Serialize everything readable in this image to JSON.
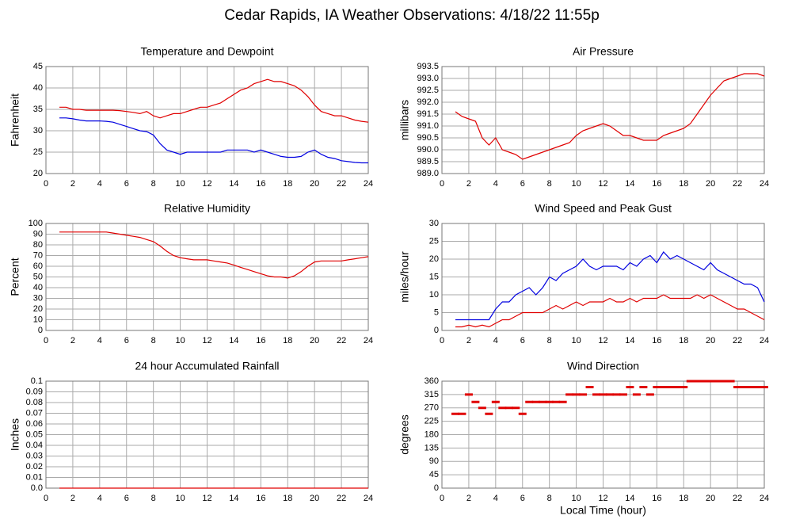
{
  "title": "Cedar Rapids, IA Weather Observations: 4/18/22 11:55p",
  "chart_data": [
    {
      "type": "line",
      "title": "Temperature and Dewpoint",
      "ylabel": "Fahrenheit",
      "x": [
        1,
        1.5,
        2,
        2.5,
        3,
        3.5,
        4,
        4.5,
        5,
        5.5,
        6,
        6.5,
        7,
        7.5,
        8,
        8.5,
        9,
        9.5,
        10,
        10.5,
        11,
        11.5,
        12,
        12.5,
        13,
        13.5,
        14,
        14.5,
        15,
        15.5,
        16,
        16.5,
        17,
        17.5,
        18,
        18.5,
        19,
        19.5,
        20,
        20.5,
        21,
        21.5,
        22,
        22.5,
        23,
        23.5,
        24
      ],
      "series": [
        {
          "color": "#e00000",
          "values": [
            35.5,
            35.5,
            35,
            35,
            34.8,
            34.8,
            34.8,
            34.8,
            34.8,
            34.7,
            34.5,
            34.3,
            34,
            34.5,
            33.5,
            33,
            33.5,
            34,
            34,
            34.5,
            35,
            35.5,
            35.5,
            36,
            36.5,
            37.5,
            38.5,
            39.5,
            40,
            41,
            41.5,
            42,
            41.5,
            41.5,
            41,
            40.5,
            39.5,
            38,
            36,
            34.5,
            34,
            33.5,
            33.5,
            33,
            32.5,
            32.2,
            32
          ]
        },
        {
          "color": "#0000e0",
          "values": [
            33,
            33,
            32.8,
            32.5,
            32.3,
            32.3,
            32.3,
            32.2,
            32,
            31.5,
            31,
            30.5,
            30,
            29.8,
            29,
            27,
            25.5,
            25,
            24.5,
            25,
            25,
            25,
            25,
            25,
            25,
            25.5,
            25.5,
            25.5,
            25.5,
            25,
            25.5,
            25,
            24.5,
            24,
            23.8,
            23.8,
            24,
            25,
            25.5,
            24.5,
            23.8,
            23.5,
            23,
            22.8,
            22.6,
            22.5,
            22.5
          ]
        }
      ],
      "xlim": [
        0,
        24
      ],
      "xticks": [
        0,
        2,
        4,
        6,
        8,
        10,
        12,
        14,
        16,
        18,
        20,
        22,
        24
      ],
      "ylim": [
        20,
        45
      ],
      "yticks": [
        20,
        25,
        30,
        35,
        40,
        45
      ],
      "grid": true
    },
    {
      "type": "line",
      "title": "Air Pressure",
      "ylabel": "millibars",
      "x": [
        1,
        1.5,
        2,
        2.5,
        3,
        3.5,
        4,
        4.5,
        5,
        5.5,
        6,
        6.5,
        7,
        7.5,
        8,
        8.5,
        9,
        9.5,
        10,
        10.5,
        11,
        11.5,
        12,
        12.5,
        13,
        13.5,
        14,
        14.5,
        15,
        15.5,
        16,
        16.5,
        17,
        17.5,
        18,
        18.5,
        19,
        19.5,
        20,
        20.5,
        21,
        21.5,
        22,
        22.5,
        23,
        23.5,
        24
      ],
      "series": [
        {
          "color": "#e00000",
          "values": [
            991.6,
            991.4,
            991.3,
            991.2,
            990.5,
            990.2,
            990.5,
            990,
            989.9,
            989.8,
            989.6,
            989.7,
            989.8,
            989.9,
            990,
            990.1,
            990.2,
            990.3,
            990.6,
            990.8,
            990.9,
            991,
            991.1,
            991,
            990.8,
            990.6,
            990.6,
            990.5,
            990.4,
            990.4,
            990.4,
            990.6,
            990.7,
            990.8,
            990.9,
            991.1,
            991.5,
            991.9,
            992.3,
            992.6,
            992.9,
            993,
            993.1,
            993.2,
            993.2,
            993.2,
            993.1
          ]
        }
      ],
      "xlim": [
        0,
        24
      ],
      "xticks": [
        0,
        2,
        4,
        6,
        8,
        10,
        12,
        14,
        16,
        18,
        20,
        22,
        24
      ],
      "ylim": [
        989,
        993.5
      ],
      "yticks": [
        {
          "value": 989,
          "label": "989.0"
        },
        989.5,
        {
          "value": 990,
          "label": "990.0"
        },
        990.5,
        {
          "value": 991,
          "label": "991.0"
        },
        991.5,
        {
          "value": 992,
          "label": "992.0"
        },
        992.5,
        {
          "value": 993,
          "label": "993.0"
        },
        993.5
      ],
      "grid": true
    },
    {
      "type": "line",
      "title": "Relative Humidity",
      "ylabel": "Percent",
      "x": [
        1,
        1.5,
        2,
        2.5,
        3,
        3.5,
        4,
        4.5,
        5,
        5.5,
        6,
        6.5,
        7,
        7.5,
        8,
        8.5,
        9,
        9.5,
        10,
        10.5,
        11,
        11.5,
        12,
        12.5,
        13,
        13.5,
        14,
        14.5,
        15,
        15.5,
        16,
        16.5,
        17,
        17.5,
        18,
        18.5,
        19,
        19.5,
        20,
        20.5,
        21,
        21.5,
        22,
        22.5,
        23,
        23.5,
        24
      ],
      "series": [
        {
          "color": "#e00000",
          "values": [
            92,
            92,
            92,
            92,
            92,
            92,
            92,
            92,
            91,
            90,
            89,
            88,
            87,
            85,
            83,
            79,
            74,
            70,
            68,
            67,
            66,
            66,
            66,
            65,
            64,
            63,
            61,
            59,
            57,
            55,
            53,
            51,
            50,
            50,
            49,
            51,
            55,
            60,
            64,
            65,
            65,
            65,
            65,
            66,
            67,
            68,
            69
          ]
        }
      ],
      "xlim": [
        0,
        24
      ],
      "xticks": [
        0,
        2,
        4,
        6,
        8,
        10,
        12,
        14,
        16,
        18,
        20,
        22,
        24
      ],
      "ylim": [
        0,
        100
      ],
      "yticks": [
        0,
        10,
        20,
        30,
        40,
        50,
        60,
        70,
        80,
        90,
        100
      ],
      "grid": true
    },
    {
      "type": "line",
      "title": "Wind Speed and Peak Gust",
      "ylabel": "miles/hour",
      "x": [
        1,
        1.5,
        2,
        2.5,
        3,
        3.5,
        4,
        4.5,
        5,
        5.5,
        6,
        6.5,
        7,
        7.5,
        8,
        8.5,
        9,
        9.5,
        10,
        10.5,
        11,
        11.5,
        12,
        12.5,
        13,
        13.5,
        14,
        14.5,
        15,
        15.5,
        16,
        16.5,
        17,
        17.5,
        18,
        18.5,
        19,
        19.5,
        20,
        20.5,
        21,
        21.5,
        22,
        22.5,
        23,
        23.5,
        24
      ],
      "series": [
        {
          "color": "#e00000",
          "values": [
            1,
            1,
            1.5,
            1,
            1.5,
            1,
            2,
            3,
            3,
            4,
            5,
            5,
            5,
            5,
            6,
            7,
            6,
            7,
            8,
            7,
            8,
            8,
            8,
            9,
            8,
            8,
            9,
            8,
            9,
            9,
            9,
            10,
            9,
            9,
            9,
            9,
            10,
            9,
            10,
            9,
            8,
            7,
            6,
            6,
            5,
            4,
            3
          ]
        },
        {
          "color": "#0000e0",
          "values": [
            3,
            3,
            3,
            3,
            3,
            3,
            6,
            8,
            8,
            10,
            11,
            12,
            10,
            12,
            15,
            14,
            16,
            17,
            18,
            20,
            18,
            17,
            18,
            18,
            18,
            17,
            19,
            18,
            20,
            21,
            19,
            22,
            20,
            21,
            20,
            19,
            18,
            17,
            19,
            17,
            16,
            15,
            14,
            13,
            13,
            12,
            8
          ]
        }
      ],
      "xlim": [
        0,
        24
      ],
      "xticks": [
        0,
        2,
        4,
        6,
        8,
        10,
        12,
        14,
        16,
        18,
        20,
        22,
        24
      ],
      "ylim": [
        0,
        30
      ],
      "yticks": [
        0,
        5,
        10,
        15,
        20,
        25,
        30
      ],
      "grid": true
    },
    {
      "type": "line",
      "title": "24 hour Accumulated Rainfall",
      "ylabel": "Inches",
      "x": [
        1,
        24
      ],
      "series": [
        {
          "color": "#e00000",
          "values": [
            0,
            0
          ]
        }
      ],
      "xlim": [
        0,
        24
      ],
      "xticks": [
        0,
        2,
        4,
        6,
        8,
        10,
        12,
        14,
        16,
        18,
        20,
        22,
        24
      ],
      "ylim": [
        0,
        0.1
      ],
      "yticks": [
        {
          "value": 0,
          "label": "0.0"
        },
        0.01,
        0.02,
        0.03,
        0.04,
        0.05,
        0.06,
        0.07,
        0.08,
        0.09,
        0.1
      ],
      "grid": true
    },
    {
      "type": "scatter",
      "title": "Wind Direction",
      "ylabel": "degrees",
      "xlabel": "Local Time (hour)",
      "x": [
        1,
        1.5,
        2,
        2.5,
        3,
        3.5,
        4,
        4.5,
        5,
        5.5,
        6,
        6.5,
        7,
        7.5,
        8,
        8.5,
        9,
        9.5,
        10,
        10.5,
        11,
        11.5,
        12,
        12.5,
        13,
        13.5,
        14,
        14.5,
        15,
        15.5,
        16,
        16.5,
        17,
        17.5,
        18,
        18.5,
        19,
        19.5,
        20,
        20.5,
        21,
        21.5,
        22,
        22.5,
        23,
        23.5,
        24
      ],
      "series": [
        {
          "color": "#e00000",
          "values": [
            250,
            250,
            315,
            290,
            270,
            250,
            290,
            270,
            270,
            270,
            250,
            290,
            290,
            290,
            290,
            290,
            290,
            315,
            315,
            315,
            340,
            315,
            315,
            315,
            315,
            315,
            340,
            315,
            340,
            315,
            340,
            340,
            340,
            340,
            340,
            360,
            360,
            360,
            360,
            360,
            360,
            360,
            340,
            340,
            340,
            340,
            340
          ]
        }
      ],
      "xlim": [
        0,
        24
      ],
      "xticks": [
        0,
        2,
        4,
        6,
        8,
        10,
        12,
        14,
        16,
        18,
        20,
        22,
        24
      ],
      "ylim": [
        0,
        360
      ],
      "yticks": [
        0,
        45,
        90,
        135,
        180,
        225,
        270,
        315,
        360
      ],
      "grid": true
    }
  ]
}
